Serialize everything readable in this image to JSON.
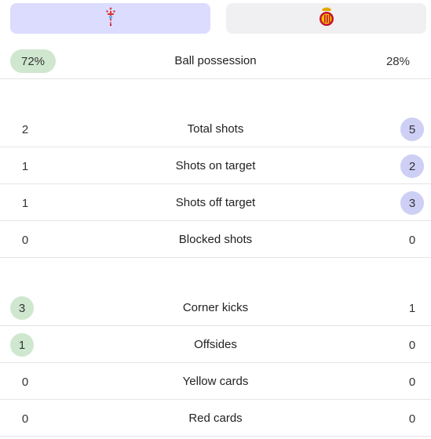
{
  "teams": {
    "home": {
      "crest_icon": "celta-vigo-crest-icon"
    },
    "away": {
      "crest_icon": "mallorca-crest-icon"
    }
  },
  "colors": {
    "home_highlight": "#cfe7cf",
    "away_highlight": "#cdcff5",
    "home_tab": "#dcdcff"
  },
  "possession": {
    "label": "Ball possession",
    "home": "72%",
    "away": "28%"
  },
  "shots": [
    {
      "label": "Total shots",
      "home": "2",
      "away": "5"
    },
    {
      "label": "Shots on target",
      "home": "1",
      "away": "2"
    },
    {
      "label": "Shots off target",
      "home": "1",
      "away": "3"
    },
    {
      "label": "Blocked shots",
      "home": "0",
      "away": "0"
    }
  ],
  "other": [
    {
      "label": "Corner kicks",
      "home": "3",
      "away": "1"
    },
    {
      "label": "Offsides",
      "home": "1",
      "away": "0"
    },
    {
      "label": "Yellow cards",
      "home": "0",
      "away": "0"
    },
    {
      "label": "Red cards",
      "home": "0",
      "away": "0"
    }
  ]
}
